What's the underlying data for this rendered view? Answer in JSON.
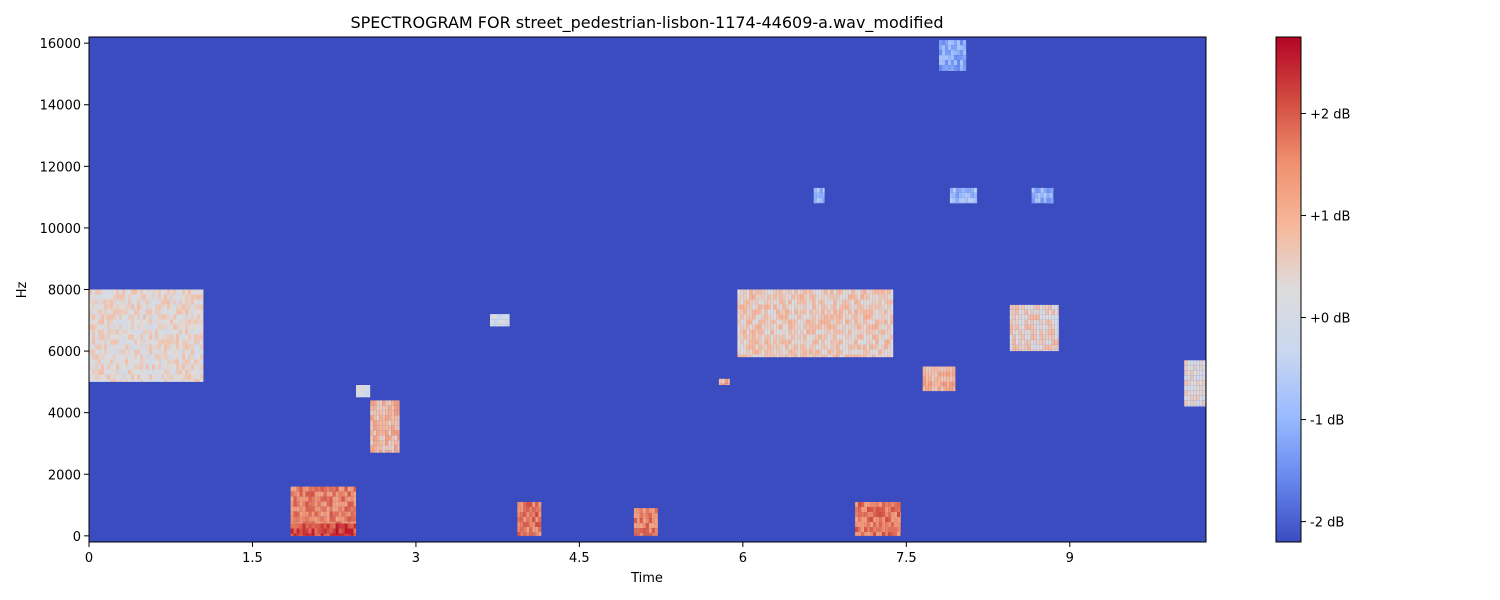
{
  "chart_data": {
    "type": "heatmap",
    "title": "SPECTROGRAM FOR street_pedestrian-lisbon-1174-44609-a.wav_modified",
    "xlabel": "Time",
    "ylabel": "Hz",
    "xlim": [
      0,
      10.25
    ],
    "ylim": [
      -200,
      16200
    ],
    "xticks": [
      0,
      1.5,
      3,
      4.5,
      6,
      7.5,
      9
    ],
    "xtick_labels": [
      "0",
      "1.5",
      "3",
      "4.5",
      "6",
      "7.5",
      "9"
    ],
    "yticks": [
      0,
      2000,
      4000,
      6000,
      8000,
      10000,
      12000,
      14000,
      16000
    ],
    "ytick_labels": [
      "0",
      "2000",
      "4000",
      "6000",
      "8000",
      "10000",
      "12000",
      "14000",
      "16000"
    ],
    "background_db": -2.0,
    "colormap": "coolwarm",
    "colors": {
      "background": "#3b4cc0",
      "cmap_stops": [
        "#3b4cc0",
        "#6788ee",
        "#9abbff",
        "#c9d7f0",
        "#dddcdc",
        "#f6b89c",
        "#f0916f",
        "#d24b40",
        "#b40426"
      ]
    },
    "colorbar": {
      "range_db": [
        -2.2,
        2.75
      ],
      "ticks_db": [
        -2,
        -1,
        0,
        1,
        2
      ],
      "tick_labels": [
        "-2 dB",
        "-1 dB",
        "+0 dB",
        "+1 dB",
        "+2 dB"
      ]
    },
    "regions": [
      {
        "t": [
          0.0,
          1.05
        ],
        "f": [
          5000,
          8000
        ],
        "db": 0.35
      },
      {
        "t": [
          1.85,
          2.45
        ],
        "f": [
          0,
          1600
        ],
        "db": 1.6
      },
      {
        "t": [
          1.85,
          2.45
        ],
        "f": [
          0,
          400
        ],
        "db": 2.2
      },
      {
        "t": [
          2.45,
          2.58
        ],
        "f": [
          4500,
          4900
        ],
        "db": 0.0
      },
      {
        "t": [
          2.58,
          2.85
        ],
        "f": [
          2700,
          4400
        ],
        "db": 0.9
      },
      {
        "t": [
          3.68,
          3.86
        ],
        "f": [
          6800,
          7200
        ],
        "db": 0.0
      },
      {
        "t": [
          3.93,
          4.15
        ],
        "f": [
          0,
          1100
        ],
        "db": 1.7
      },
      {
        "t": [
          5.0,
          5.22
        ],
        "f": [
          0,
          900
        ],
        "db": 1.6
      },
      {
        "t": [
          5.78,
          5.88
        ],
        "f": [
          4900,
          5100
        ],
        "db": 1.0
      },
      {
        "t": [
          5.95,
          7.38
        ],
        "f": [
          5800,
          8000
        ],
        "db": 0.6
      },
      {
        "t": [
          6.65,
          6.75
        ],
        "f": [
          10800,
          11300
        ],
        "db": -1.0
      },
      {
        "t": [
          7.03,
          7.45
        ],
        "f": [
          0,
          1100
        ],
        "db": 1.7
      },
      {
        "t": [
          7.65,
          7.95
        ],
        "f": [
          4700,
          5500
        ],
        "db": 1.0
      },
      {
        "t": [
          7.8,
          8.05
        ],
        "f": [
          15100,
          16100
        ],
        "db": -1.2
      },
      {
        "t": [
          7.9,
          8.15
        ],
        "f": [
          10800,
          11300
        ],
        "db": -0.9
      },
      {
        "t": [
          8.45,
          8.9
        ],
        "f": [
          6000,
          7500
        ],
        "db": 0.5
      },
      {
        "t": [
          8.65,
          8.85
        ],
        "f": [
          10800,
          11300
        ],
        "db": -1.0
      },
      {
        "t": [
          10.05,
          10.25
        ],
        "f": [
          4200,
          5700
        ],
        "db": 0.3
      }
    ]
  }
}
